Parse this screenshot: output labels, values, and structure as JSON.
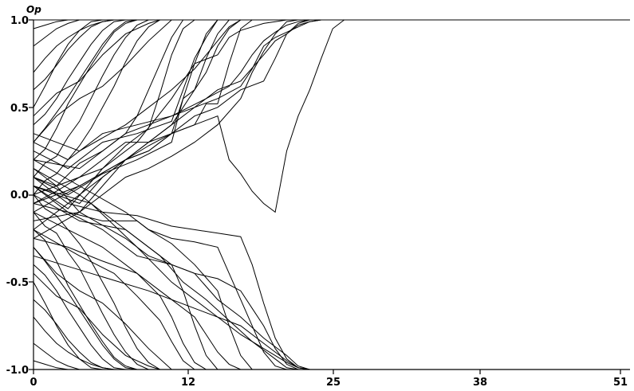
{
  "chart_data": {
    "type": "line",
    "title": "",
    "xlabel": "",
    "ylabel": "Op",
    "xlim": [
      0,
      51
    ],
    "ylim": [
      -1.0,
      1.0
    ],
    "x_ticks": [
      "0",
      "12",
      "25",
      "38",
      "51"
    ],
    "y_ticks": [
      "1.0",
      "0.5",
      "0.0",
      "-0.5",
      "-1.0"
    ],
    "grid": false,
    "legend": "none",
    "line_color": "#000000",
    "series": [
      {
        "x": [
          0,
          1,
          2,
          3,
          4,
          5,
          6,
          7,
          8
        ],
        "y": [
          0.7,
          0.78,
          0.85,
          0.9,
          0.94,
          0.97,
          0.99,
          1.0,
          1.0
        ]
      },
      {
        "x": [
          0,
          1,
          2,
          3,
          4,
          5,
          6
        ],
        "y": [
          0.5,
          0.62,
          0.75,
          0.86,
          0.94,
          0.99,
          1.0
        ]
      },
      {
        "x": [
          0,
          1,
          2,
          3,
          4,
          5
        ],
        "y": [
          0.85,
          0.9,
          0.95,
          0.98,
          1.0,
          1.0
        ]
      },
      {
        "x": [
          0,
          1,
          2,
          3,
          4,
          5,
          6,
          7,
          8,
          9
        ],
        "y": [
          0.3,
          0.38,
          0.47,
          0.56,
          0.66,
          0.76,
          0.86,
          0.94,
          0.99,
          1.0
        ]
      },
      {
        "x": [
          0,
          1,
          2,
          3,
          4,
          5,
          6,
          7,
          8,
          9,
          10
        ],
        "y": [
          0.1,
          0.18,
          0.22,
          0.33,
          0.42,
          0.55,
          0.68,
          0.8,
          0.9,
          0.97,
          1.0
        ]
      },
      {
        "x": [
          0,
          1,
          2,
          3,
          4,
          5,
          6,
          7,
          8,
          9
        ],
        "y": [
          0.2,
          0.26,
          0.38,
          0.52,
          0.63,
          0.74,
          0.84,
          0.93,
          0.98,
          1.0
        ]
      },
      {
        "x": [
          0,
          1,
          2,
          3,
          4,
          5,
          6,
          7
        ],
        "y": [
          0.6,
          0.66,
          0.74,
          0.83,
          0.9,
          0.96,
          0.99,
          1.0
        ]
      },
      {
        "x": [
          0,
          1,
          2,
          3,
          4
        ],
        "y": [
          0.95,
          0.97,
          0.99,
          1.0,
          1.0
        ]
      },
      {
        "x": [
          0,
          1,
          2,
          3,
          4,
          5,
          6,
          7,
          8,
          9,
          10,
          11
        ],
        "y": [
          0.0,
          0.08,
          0.12,
          0.2,
          0.28,
          0.38,
          0.5,
          0.62,
          0.76,
          0.88,
          0.96,
          1.0
        ]
      },
      {
        "x": [
          0,
          1,
          2,
          3,
          4,
          5,
          6,
          7,
          8
        ],
        "y": [
          0.4,
          0.46,
          0.55,
          0.66,
          0.76,
          0.86,
          0.94,
          0.99,
          1.0
        ]
      },
      {
        "x": [
          0,
          2,
          4,
          6,
          8,
          9,
          10,
          11,
          12,
          13
        ],
        "y": [
          0.15,
          0.05,
          0.18,
          0.25,
          0.35,
          0.45,
          0.6,
          0.75,
          0.9,
          1.0
        ]
      },
      {
        "x": [
          0,
          2,
          4,
          6,
          8,
          10,
          11,
          12,
          13,
          14
        ],
        "y": [
          -0.05,
          0.02,
          0.1,
          0.15,
          0.28,
          0.38,
          0.58,
          0.8,
          0.95,
          1.0
        ]
      },
      {
        "x": [
          0,
          2,
          4,
          6,
          8,
          10,
          12,
          13,
          14,
          15,
          16
        ],
        "y": [
          0.05,
          0.0,
          -0.05,
          0.1,
          0.2,
          0.25,
          0.35,
          0.55,
          0.75,
          0.92,
          1.0
        ]
      },
      {
        "x": [
          0,
          3,
          6,
          9,
          12,
          13,
          14,
          15,
          16
        ],
        "y": [
          0.25,
          0.15,
          0.3,
          0.35,
          0.42,
          0.6,
          0.78,
          0.9,
          1.0
        ]
      },
      {
        "x": [
          0,
          3,
          6,
          9,
          12,
          13,
          14,
          15,
          16,
          17,
          18
        ],
        "y": [
          0.1,
          0.0,
          0.12,
          0.2,
          0.3,
          0.55,
          0.6,
          0.7,
          0.85,
          0.95,
          1.0
        ]
      },
      {
        "x": [
          0,
          4,
          8,
          10,
          12,
          14,
          15,
          16,
          17,
          18,
          19,
          20
        ],
        "y": [
          -0.1,
          0.05,
          0.2,
          0.25,
          0.35,
          0.4,
          0.52,
          0.52,
          0.75,
          0.95,
          1.0,
          1.0
        ]
      },
      {
        "x": [
          0,
          4,
          8,
          10,
          12,
          14,
          15,
          16,
          17,
          18
        ],
        "y": [
          0.35,
          0.25,
          0.4,
          0.5,
          0.6,
          0.72,
          0.8,
          0.88,
          0.96,
          1.0
        ]
      },
      {
        "x": [
          0,
          4,
          8,
          10,
          12,
          14,
          16,
          18,
          20,
          21,
          22,
          23,
          24,
          25
        ],
        "y": [
          0.0,
          0.1,
          0.3,
          0.3,
          0.35,
          0.45,
          0.5,
          0.6,
          0.65,
          0.78,
          0.92,
          0.98,
          1.0,
          1.0
        ]
      },
      {
        "x": [
          0,
          4,
          8,
          12,
          14,
          16,
          18,
          19,
          20,
          21,
          22,
          23,
          24,
          25
        ],
        "y": [
          0.2,
          0.15,
          0.35,
          0.45,
          0.5,
          0.55,
          0.62,
          0.72,
          0.85,
          0.9,
          0.93,
          0.96,
          0.99,
          1.0
        ]
      },
      {
        "x": [
          0,
          4,
          8,
          12,
          16,
          18,
          20,
          21,
          22,
          23,
          24,
          25,
          26
        ],
        "y": [
          -0.05,
          0.05,
          0.2,
          0.4,
          0.6,
          0.65,
          0.8,
          0.88,
          0.92,
          0.97,
          0.99,
          1.0,
          1.0
        ]
      },
      {
        "x": [
          0,
          2,
          4,
          6,
          8,
          10,
          12,
          14,
          16,
          17,
          18,
          19,
          20,
          21,
          22,
          23,
          24,
          25,
          26,
          27
        ],
        "y": [
          0.1,
          0.05,
          -0.1,
          0.05,
          0.2,
          0.28,
          0.35,
          0.4,
          0.45,
          0.2,
          0.12,
          0.02,
          -0.05,
          -0.1,
          0.25,
          0.45,
          0.6,
          0.78,
          0.95,
          1.0
        ]
      },
      {
        "x": [
          0,
          3,
          6,
          9,
          12,
          14,
          16,
          17,
          18,
          19,
          20,
          21,
          22,
          23
        ],
        "y": [
          0.05,
          -0.08,
          0.15,
          0.3,
          0.55,
          0.75,
          0.8,
          0.9,
          0.94,
          0.96,
          0.98,
          0.99,
          1.0,
          1.0
        ]
      },
      {
        "x": [
          0,
          3,
          6,
          9,
          12,
          14,
          15,
          16,
          17
        ],
        "y": [
          -0.2,
          -0.05,
          0.1,
          0.25,
          0.4,
          0.6,
          0.78,
          0.92,
          1.0
        ]
      },
      {
        "x": [
          0,
          4,
          8,
          10,
          12,
          14,
          16,
          18,
          19,
          20,
          21,
          22,
          23
        ],
        "y": [
          -0.25,
          -0.1,
          0.1,
          0.15,
          0.22,
          0.3,
          0.4,
          0.55,
          0.7,
          0.82,
          0.92,
          0.99,
          1.0
        ]
      },
      {
        "x": [
          0,
          3,
          6,
          9,
          12,
          15,
          17,
          18,
          19,
          20,
          21,
          22,
          23,
          24
        ],
        "y": [
          0.3,
          0.2,
          0.35,
          0.4,
          0.45,
          0.55,
          0.62,
          0.7,
          0.8,
          0.88,
          0.93,
          0.97,
          0.99,
          1.0
        ]
      },
      {
        "x": [
          0,
          2,
          4,
          6,
          8,
          10,
          12
        ],
        "y": [
          0.3,
          0.45,
          0.55,
          0.62,
          0.74,
          0.88,
          1.0
        ]
      },
      {
        "x": [
          0,
          2,
          4,
          6,
          8,
          10,
          11
        ],
        "y": [
          0.45,
          0.58,
          0.65,
          0.8,
          0.92,
          0.98,
          1.0
        ]
      },
      {
        "x": [
          0,
          1,
          2,
          3,
          4,
          5,
          6,
          7,
          8
        ],
        "y": [
          -0.7,
          -0.78,
          -0.85,
          -0.9,
          -0.94,
          -0.97,
          -0.99,
          -1.0,
          -1.0
        ]
      },
      {
        "x": [
          0,
          1,
          2,
          3,
          4,
          5,
          6
        ],
        "y": [
          -0.5,
          -0.62,
          -0.75,
          -0.86,
          -0.94,
          -0.99,
          -1.0
        ]
      },
      {
        "x": [
          0,
          1,
          2,
          3,
          4,
          5
        ],
        "y": [
          -0.85,
          -0.9,
          -0.95,
          -0.98,
          -1.0,
          -1.0
        ]
      },
      {
        "x": [
          0,
          1,
          2,
          3,
          4,
          5,
          6,
          7,
          8,
          9
        ],
        "y": [
          -0.3,
          -0.38,
          -0.47,
          -0.56,
          -0.66,
          -0.76,
          -0.86,
          -0.94,
          -0.99,
          -1.0
        ]
      },
      {
        "x": [
          0,
          1,
          2,
          3,
          4,
          5,
          6,
          7,
          8,
          9,
          10
        ],
        "y": [
          -0.1,
          -0.18,
          -0.22,
          -0.33,
          -0.42,
          -0.55,
          -0.68,
          -0.8,
          -0.9,
          -0.97,
          -1.0
        ]
      },
      {
        "x": [
          0,
          1,
          2,
          3,
          4,
          5,
          6,
          7,
          8,
          9
        ],
        "y": [
          -0.2,
          -0.26,
          -0.38,
          -0.52,
          -0.63,
          -0.74,
          -0.84,
          -0.93,
          -0.98,
          -1.0
        ]
      },
      {
        "x": [
          0,
          1,
          2,
          3,
          4,
          5,
          6,
          7
        ],
        "y": [
          -0.6,
          -0.66,
          -0.74,
          -0.83,
          -0.9,
          -0.96,
          -0.99,
          -1.0
        ]
      },
      {
        "x": [
          0,
          1,
          2,
          3,
          4
        ],
        "y": [
          -0.95,
          -0.97,
          -0.99,
          -1.0,
          -1.0
        ]
      },
      {
        "x": [
          0,
          1,
          2,
          3,
          4,
          5,
          6,
          7,
          8,
          9,
          10,
          11
        ],
        "y": [
          0.0,
          -0.08,
          -0.12,
          -0.2,
          -0.28,
          -0.38,
          -0.5,
          -0.62,
          -0.76,
          -0.88,
          -0.96,
          -1.0
        ]
      },
      {
        "x": [
          0,
          1,
          2,
          3,
          4,
          5,
          6,
          7,
          8
        ],
        "y": [
          -0.4,
          -0.46,
          -0.55,
          -0.66,
          -0.76,
          -0.86,
          -0.94,
          -0.99,
          -1.0
        ]
      },
      {
        "x": [
          0,
          2,
          4,
          6,
          8,
          10,
          12
        ],
        "y": [
          -0.3,
          -0.45,
          -0.55,
          -0.62,
          -0.74,
          -0.88,
          -1.0
        ]
      },
      {
        "x": [
          0,
          2,
          4,
          6,
          8,
          10,
          11
        ],
        "y": [
          -0.45,
          -0.58,
          -0.65,
          -0.8,
          -0.92,
          -0.98,
          -1.0
        ]
      },
      {
        "x": [
          0,
          3,
          6,
          9,
          12,
          14,
          16,
          18,
          19,
          20,
          21,
          22,
          23
        ],
        "y": [
          0.05,
          -0.1,
          -0.2,
          -0.35,
          -0.4,
          -0.45,
          -0.48,
          -0.55,
          -0.65,
          -0.75,
          -0.88,
          -0.97,
          -1.0
        ]
      },
      {
        "x": [
          0,
          3,
          6,
          9,
          10,
          12,
          14,
          16,
          17,
          18,
          19,
          20,
          21,
          22
        ],
        "y": [
          -0.05,
          -0.1,
          -0.15,
          -0.15,
          -0.2,
          -0.25,
          -0.27,
          -0.3,
          -0.45,
          -0.6,
          -0.75,
          -0.9,
          -0.98,
          -1.0
        ]
      },
      {
        "x": [
          0,
          3,
          6,
          9,
          12,
          14,
          16,
          18,
          19,
          20,
          21,
          22,
          23,
          24
        ],
        "y": [
          0.1,
          -0.05,
          -0.1,
          -0.12,
          -0.18,
          -0.2,
          -0.22,
          -0.24,
          -0.4,
          -0.62,
          -0.82,
          -0.94,
          -0.99,
          -1.0
        ]
      },
      {
        "x": [
          0,
          4,
          8,
          10,
          12,
          14,
          16,
          18,
          20,
          22,
          23,
          24
        ],
        "y": [
          -0.15,
          -0.1,
          -0.25,
          -0.35,
          -0.4,
          -0.45,
          -0.6,
          -0.7,
          -0.82,
          -0.92,
          -0.98,
          -1.0
        ]
      },
      {
        "x": [
          0,
          3,
          6,
          9,
          12,
          14,
          15,
          16,
          17,
          18
        ],
        "y": [
          -0.25,
          -0.3,
          -0.38,
          -0.45,
          -0.6,
          -0.7,
          -0.8,
          -0.9,
          -0.97,
          -1.0
        ]
      },
      {
        "x": [
          0,
          4,
          8,
          10,
          12,
          13,
          14,
          15,
          16
        ],
        "y": [
          0.0,
          -0.15,
          -0.2,
          -0.3,
          -0.4,
          -0.55,
          -0.75,
          -0.92,
          -1.0
        ]
      },
      {
        "x": [
          0,
          4,
          8,
          10,
          12,
          14,
          16,
          17,
          18,
          19
        ],
        "y": [
          0.2,
          0.05,
          -0.1,
          -0.2,
          -0.28,
          -0.4,
          -0.55,
          -0.75,
          -0.92,
          -1.0
        ]
      },
      {
        "x": [
          0,
          3,
          6,
          9,
          11,
          12,
          13,
          14,
          15
        ],
        "y": [
          -0.1,
          -0.2,
          -0.3,
          -0.45,
          -0.58,
          -0.7,
          -0.85,
          -0.96,
          -1.0
        ]
      },
      {
        "x": [
          0,
          5,
          10,
          14,
          18,
          20,
          22,
          23,
          24
        ],
        "y": [
          -0.35,
          -0.45,
          -0.55,
          -0.65,
          -0.75,
          -0.85,
          -0.95,
          -0.99,
          -1.0
        ]
      },
      {
        "x": [
          0,
          4,
          8,
          11,
          13,
          15,
          17,
          19,
          21,
          22,
          23
        ],
        "y": [
          0.15,
          0.0,
          -0.2,
          -0.35,
          -0.5,
          -0.6,
          -0.72,
          -0.84,
          -0.94,
          -0.99,
          -1.0
        ]
      },
      {
        "x": [
          0,
          4,
          7,
          9,
          11,
          12,
          13,
          14
        ],
        "y": [
          -0.2,
          -0.35,
          -0.45,
          -0.58,
          -0.72,
          -0.84,
          -0.95,
          -1.0
        ]
      },
      {
        "x": [
          0,
          5,
          9,
          12,
          14,
          16,
          18,
          20,
          22,
          23,
          24
        ],
        "y": [
          0.05,
          -0.05,
          -0.3,
          -0.5,
          -0.6,
          -0.7,
          -0.8,
          -0.88,
          -0.96,
          -0.99,
          -1.0
        ]
      }
    ]
  }
}
